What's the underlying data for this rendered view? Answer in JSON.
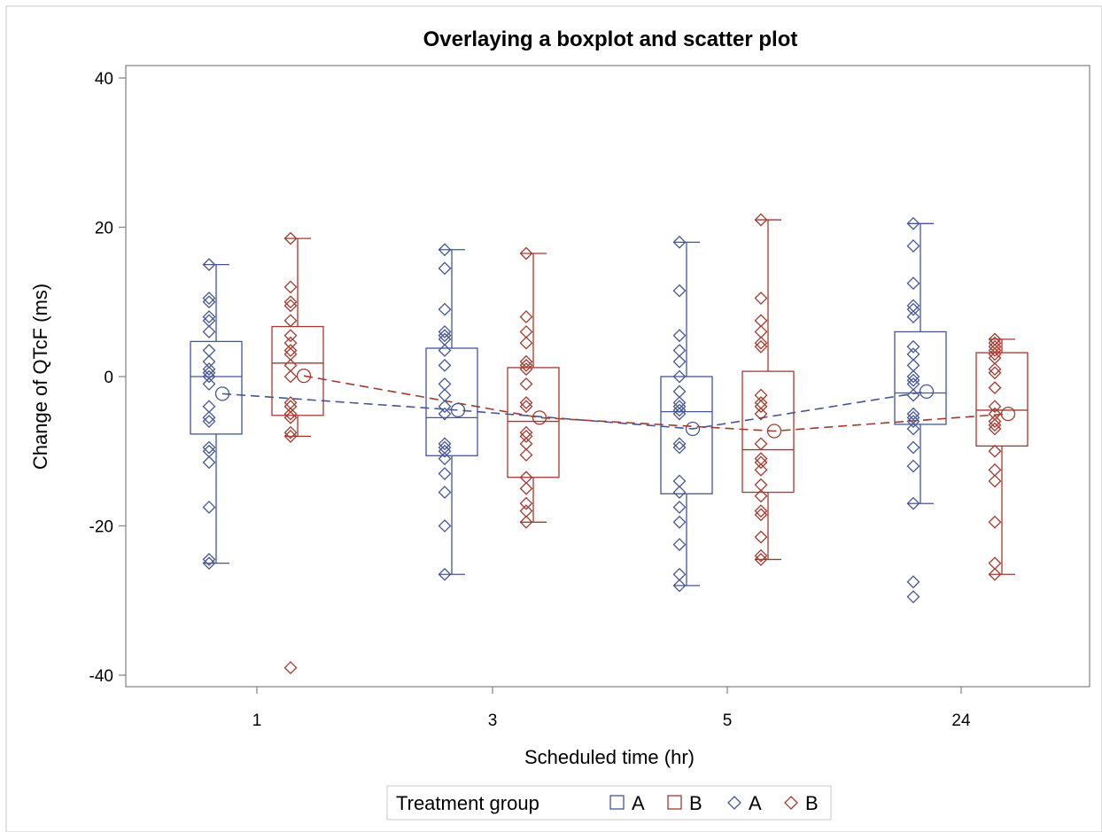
{
  "colors": {
    "group_a": "#445694",
    "group_b": "#A23A2E",
    "axis": "#8a8a8a",
    "text": "#000000"
  },
  "chart_data": {
    "type": "box",
    "title": "Overlaying a boxplot and scatter plot",
    "xlabel": "Scheduled time (hr)",
    "ylabel": "Change of QTcF (ms)",
    "categories": [
      "1",
      "3",
      "5",
      "24"
    ],
    "ylim": [
      -40,
      40
    ],
    "yticks": [
      "-40",
      "-20",
      "0",
      "20",
      "40"
    ],
    "grid": false,
    "legend": {
      "placement": "bottom",
      "title": "Treatment group",
      "entries": [
        {
          "label": "A",
          "marker": "square",
          "series": "A"
        },
        {
          "label": "B",
          "marker": "square",
          "series": "B"
        },
        {
          "label": "A",
          "marker": "diamond",
          "series": "A"
        },
        {
          "label": "B",
          "marker": "diamond",
          "series": "B"
        }
      ]
    },
    "series": [
      {
        "name": "A",
        "boxes": [
          {
            "min": -25,
            "q1": -7.7,
            "median": 0,
            "q3": 4.7,
            "max": 15,
            "mean": -2.3
          },
          {
            "min": -26.5,
            "q1": -10.6,
            "median": -5.5,
            "q3": 3.8,
            "max": 17,
            "mean": -4.5
          },
          {
            "min": -28,
            "q1": -15.7,
            "median": -4.7,
            "q3": 0,
            "max": 18,
            "mean": -7
          },
          {
            "min": -17,
            "q1": -6.4,
            "median": -2.2,
            "q3": 6,
            "max": 20.5,
            "mean": -2
          }
        ],
        "points": [
          [
            15,
            10.5,
            10,
            8,
            7.5,
            6,
            3.5,
            2,
            1,
            0.5,
            0,
            -1,
            -4,
            -5.5,
            -6,
            -9.5,
            -10,
            -11.5,
            -17.5,
            -24.5,
            -25
          ],
          [
            17,
            14.5,
            9,
            6,
            5.5,
            5,
            3.5,
            1.5,
            -1,
            -2.5,
            -4,
            -5,
            -9,
            -9.5,
            -10,
            -11,
            -13,
            -15.5,
            -20,
            -26.5
          ],
          [
            18,
            11.5,
            5.5,
            3.5,
            2,
            0,
            -2,
            -3.5,
            -4,
            -4.5,
            -5,
            -9,
            -9.5,
            -14,
            -15.5,
            -17.5,
            -19.5,
            -22.5,
            -26.5,
            -28
          ],
          [
            20.5,
            17.5,
            12.5,
            9.5,
            9,
            8,
            4,
            3,
            1.5,
            0,
            -0.5,
            -1,
            -2.5,
            -5,
            -5.5,
            -6,
            -7,
            -9.5,
            -12,
            -17,
            -27.5,
            -29.5
          ]
        ]
      },
      {
        "name": "B",
        "boxes": [
          {
            "min": -8,
            "q1": -5.2,
            "median": 1.8,
            "q3": 6.7,
            "max": 18.5,
            "mean": 0.1
          },
          {
            "min": -19.5,
            "q1": -13.5,
            "median": -6,
            "q3": 1.2,
            "max": 16.5,
            "mean": -5.5
          },
          {
            "min": -24.5,
            "q1": -15.5,
            "median": -9.8,
            "q3": 0.7,
            "max": 21,
            "mean": -7.3
          },
          {
            "min": -26.5,
            "q1": -9.3,
            "median": -4.5,
            "q3": 3.2,
            "max": 5,
            "mean": -5
          }
        ],
        "points": [
          [
            18.5,
            12,
            10,
            9.5,
            7.5,
            5.5,
            4.5,
            3.5,
            3,
            1.5,
            0,
            -3.5,
            -4,
            -5,
            -5.5,
            -7.5,
            -8,
            -39
          ],
          [
            16.5,
            8,
            6,
            4.5,
            2,
            1.5,
            1,
            -1,
            -3.5,
            -4,
            -7.5,
            -8,
            -9,
            -10.5,
            -13.5,
            -15,
            -17,
            -18,
            -19.5
          ],
          [
            21,
            10.5,
            7.5,
            6,
            4.5,
            4,
            -2.5,
            -3.5,
            -4,
            -5,
            -9,
            -11,
            -11.5,
            -12.5,
            -14.5,
            -16,
            -18,
            -18.5,
            -21.5,
            -24,
            -24.5
          ],
          [
            5,
            4.5,
            4,
            3.5,
            3,
            2.5,
            1,
            0.5,
            -1.5,
            -4,
            -5,
            -6,
            -6.5,
            -7,
            -10,
            -12.5,
            -14,
            -19.5,
            -25,
            -26.5
          ]
        ]
      }
    ]
  }
}
